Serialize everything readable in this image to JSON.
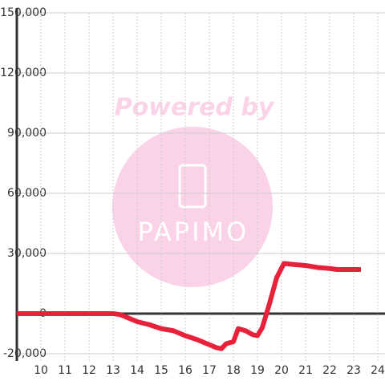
{
  "chart_data": {
    "type": "line",
    "watermark": {
      "title": "Powered by",
      "brand": "PAPIMO"
    },
    "x": [
      9,
      13,
      13.3,
      13.5,
      14,
      14.5,
      15,
      15.5,
      16,
      16.5,
      17,
      17.3,
      17.5,
      17.7,
      18,
      18.2,
      18.5,
      18.8,
      19,
      19.2,
      19.5,
      19.8,
      20.1,
      20.5,
      21,
      21.5,
      22,
      22.3,
      23.3
    ],
    "series": [
      {
        "color": "#e8213a",
        "values": [
          0,
          0,
          -500,
          -1500,
          -4000,
          -5500,
          -7500,
          -8500,
          -11000,
          -13000,
          -15500,
          -17000,
          -17500,
          -15000,
          -14000,
          -7500,
          -8500,
          -10500,
          -11000,
          -7000,
          5000,
          18000,
          25000,
          24500,
          24000,
          23000,
          22500,
          22000,
          22000
        ]
      }
    ],
    "xlim": [
      9,
      24.3
    ],
    "xticks": [
      10,
      11,
      12,
      13,
      14,
      15,
      16,
      17,
      18,
      19,
      20,
      21,
      22,
      23,
      24
    ],
    "ylim": [
      -20000,
      150000
    ],
    "yticks": [
      {
        "value": -20000,
        "label": "-20,000"
      },
      0,
      {
        "value": 30000,
        "label": "30,000"
      },
      {
        "value": 60000,
        "label": "60,000"
      },
      {
        "value": 90000,
        "label": "90,000"
      },
      {
        "value": 120000,
        "label": "120,000"
      },
      {
        "value": 150000,
        "label": "150,000"
      }
    ],
    "grid": true
  }
}
